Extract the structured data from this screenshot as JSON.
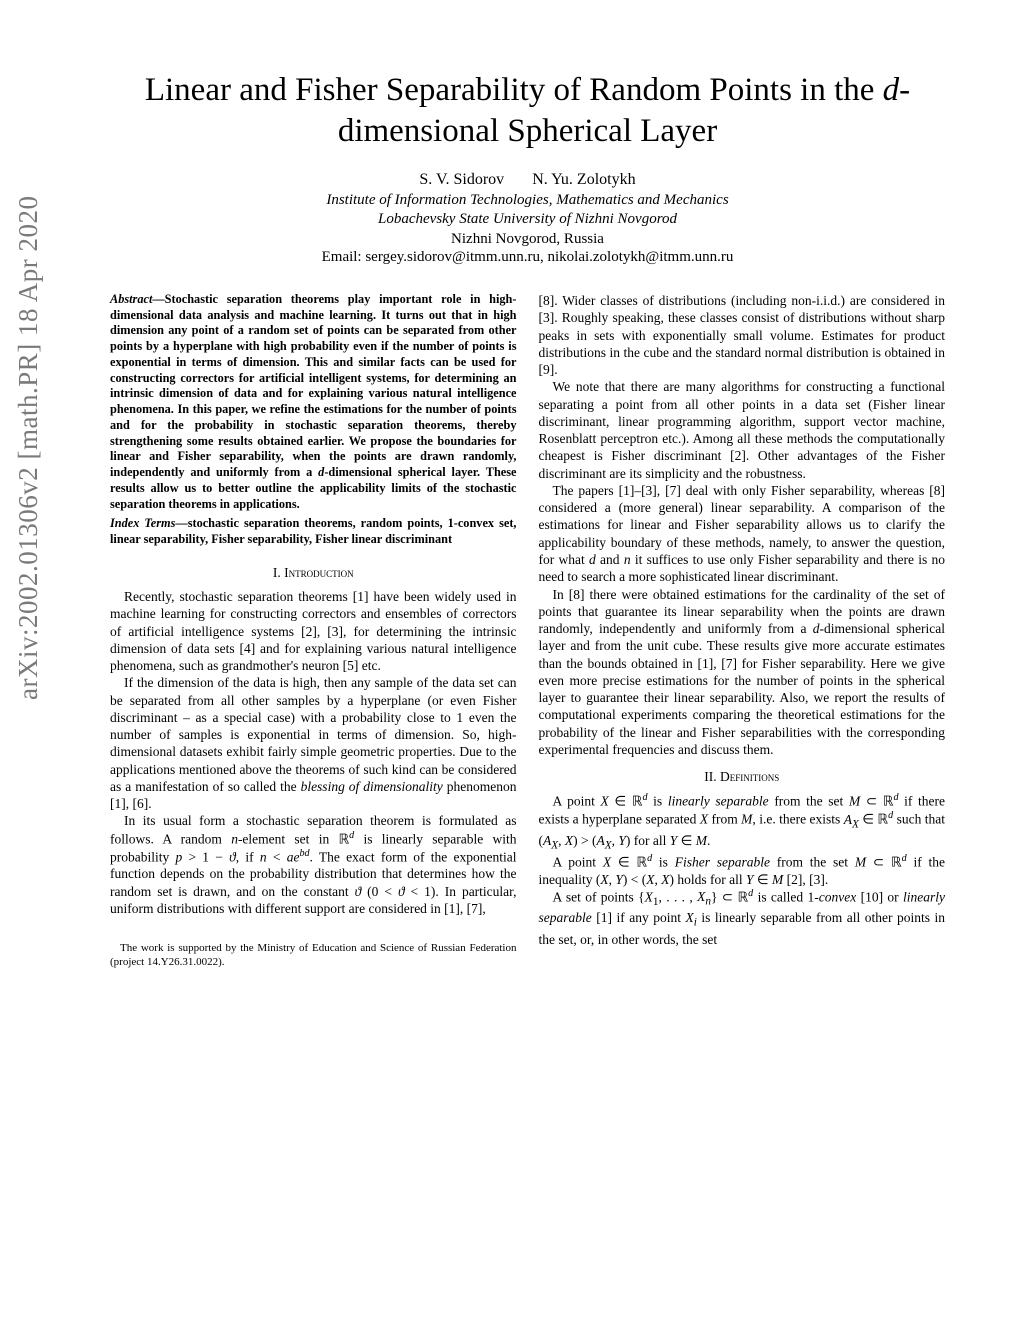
{
  "arxiv_stamp": "arXiv:2002.01306v2  [math.PR]  18 Apr 2020",
  "title_html": "Linear and Fisher Separability of Random Points in the <span class='math-i'>d</span>-dimensional Spherical Layer",
  "authors": {
    "a1": "S. V. Sidorov",
    "a2": "N. Yu. Zolotykh"
  },
  "affiliation_line1": "Institute of Information Technologies, Mathematics and Mechanics",
  "affiliation_line2": "Lobachevsky State University of Nizhni Novgorod",
  "affiliation_line3": "Nizhni Novgorod, Russia",
  "email": "Email: sergey.sidorov@itmm.unn.ru, nikolai.zolotykh@itmm.unn.ru",
  "abstract_lead": "Abstract",
  "abstract_body_html": "—Stochastic separation theorems play important role in high-dimensional data analysis and machine learning. It turns out that in high dimension any point of a random set of points can be separated from other points by a hyperplane with high probability even if the number of points is exponential in terms of dimension. This and similar facts can be used for constructing correctors for artificial intelligent systems, for determining an intrinsic dimension of data and for explaining various natural intelligence phenomena. In this paper, we refine the estimations for the number of points and for the probability in stochastic separation theorems, thereby strengthening some results obtained earlier. We propose the boundaries for linear and Fisher separability, when the points are drawn randomly, independently and uniformly from a <span class='math-i'>d</span>-dimensional spherical layer. These results allow us to better outline the applicability limits of the stochastic separation theorems in applications.",
  "index_lead": "Index Terms",
  "index_body": "—stochastic separation theorems, random points, 1-convex set, linear separability, Fisher separability, Fisher linear discriminant",
  "section1": "I.  Introduction",
  "p1": "Recently, stochastic separation theorems [1] have been widely used in machine learning for constructing correctors and ensembles of correctors of artificial intelligence systems [2], [3], for determining the intrinsic dimension of data sets [4] and for explaining various natural intelligence phenomena, such as grandmother's neuron [5] etc.",
  "p2_html": "If the dimension of the data is high, then any sample of the data set can be separated from all other samples by a hyperplane (or even Fisher discriminant – as a special case) with a probability close to 1 even the number of samples is exponential in terms of dimension. So, high-dimensional datasets exhibit fairly simple geometric properties. Due to the applications mentioned above the theorems of such kind can be considered as a manifestation of so called the <i>blessing of dimensionality</i> phenomenon [1], [6].",
  "p3_html": "In its usual form a stochastic separation theorem is formulated as follows. A random <span class='math-i'>n</span>-element set in ℝ<sup><span class='math-i'>d</span></sup> is linearly separable with probability <span class='math-i'>p</span> &gt; 1 − <span class='math-i'>ϑ</span>, if <span class='math-i'>n</span> &lt; <span class='math-i'>ae</span><sup><span class='math-i'>bd</span></sup>. The exact form of the exponential function depends on the probability distribution that determines how the random set is drawn, and on the constant <span class='math-i'>ϑ</span> (0 &lt; <span class='math-i'>ϑ</span> &lt; 1). In particular, uniform distributions with different support are considered in [1], [7],",
  "footnote": "The work is supported by the Ministry of Education and Science of Russian Federation (project 14.Y26.31.0022).",
  "p4": "[8]. Wider classes of distributions (including non-i.i.d.) are considered in [3]. Roughly speaking, these classes consist of distributions without sharp peaks in sets with exponentially small volume. Estimates for product distributions in the cube and the standard normal distribution is obtained in [9].",
  "p5": "We note that there are many algorithms for constructing a functional separating a point from all other points in a data set (Fisher linear discriminant, linear programming algorithm, support vector machine, Rosenblatt perceptron etc.). Among all these methods the computationally cheapest is Fisher discriminant [2]. Other advantages of the Fisher discriminant are its simplicity and the robustness.",
  "p6_html": "The papers [1]–[3], [7] deal with only Fisher separability, whereas [8] considered a (more general) linear separability. A comparison of the estimations for linear and Fisher separability allows us to clarify the applicability boundary of these methods, namely, to answer the question, for what <span class='math-i'>d</span> and <span class='math-i'>n</span> it suffices to use only Fisher separability and there is no need to search a more sophisticated linear discriminant.",
  "p7_html": "In [8] there were obtained estimations for the cardinality of the set of points that guarantee its linear separability when the points are drawn randomly, independently and uniformly from a <span class='math-i'>d</span>-dimensional spherical layer and from the unit cube. These results give more accurate estimates than the bounds obtained in [1], [7] for Fisher separability. Here we give even more precise estimations for the number of points in the spherical layer to guarantee their linear separability. Also, we report the results of computational experiments comparing the theoretical estimations for the probability of the linear and Fisher separabilities with the corresponding experimental frequencies and discuss them.",
  "section2": "II.  Definitions",
  "p8_html": "A point <span class='math-i'>X</span> ∈ ℝ<sup><span class='math-i'>d</span></sup> is <i>linearly separable</i> from the set <span class='math-i'>M</span> ⊂ ℝ<sup><span class='math-i'>d</span></sup> if there exists a hyperplane separated <span class='math-i'>X</span> from <span class='math-i'>M</span>, i.e. there exists <span class='math-i'>A<sub>X</sub></span> ∈ ℝ<sup><span class='math-i'>d</span></sup> such that (<span class='math-i'>A<sub>X</sub></span>, <span class='math-i'>X</span>) &gt; (<span class='math-i'>A<sub>X</sub></span>, <span class='math-i'>Y</span>) for all <span class='math-i'>Y</span> ∈ <span class='math-i'>M</span>.",
  "p9_html": "A point <span class='math-i'>X</span> ∈ ℝ<sup><span class='math-i'>d</span></sup> is <i>Fisher separable</i> from the set <span class='math-i'>M</span> ⊂ ℝ<sup><span class='math-i'>d</span></sup> if the inequality (<span class='math-i'>X</span>, <span class='math-i'>Y</span>) &lt; (<span class='math-i'>X</span>, <span class='math-i'>X</span>) holds for all <span class='math-i'>Y</span> ∈ <span class='math-i'>M</span> [2], [3].",
  "p10_html": "A set of points {<span class='math-i'>X</span><sub>1</sub>, . . . , <span class='math-i'>X<sub>n</sub></span>} ⊂ ℝ<sup><span class='math-i'>d</span></sup> is called 1-<i>convex</i> [10] or <i>linearly separable</i> [1] if any point <span class='math-i'>X<sub>i</sub></span> is linearly separable from all other points in the set, or, in other words, the set",
  "colors": {
    "text": "#000000",
    "stamp": "#7a7a7a",
    "background": "#ffffff"
  }
}
